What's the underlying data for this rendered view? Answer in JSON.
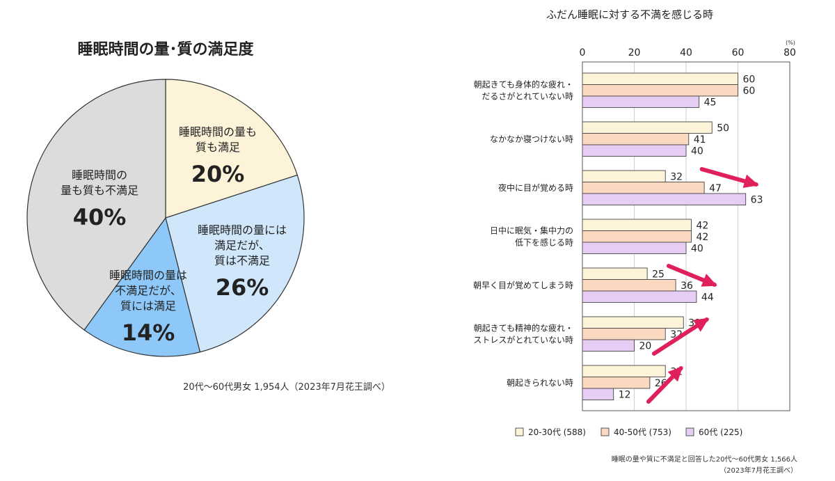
{
  "chart_data": [
    {
      "type": "pie",
      "title": "睡眠時間の量･質の満足度",
      "slices": [
        {
          "label_lines": [
            "睡眠時間の量も",
            "質も満足"
          ],
          "value": 20,
          "value_label": "20%",
          "color": "#fdf3d8"
        },
        {
          "label_lines": [
            "睡眠時間の量には",
            "満足だが、",
            "質は不満足"
          ],
          "value": 26,
          "value_label": "26%",
          "color": "#cfe6fb"
        },
        {
          "label_lines": [
            "睡眠時間の量は",
            "不満足だが、",
            "質には満足"
          ],
          "value": 14,
          "value_label": "14%",
          "color": "#8ec8f8"
        },
        {
          "label_lines": [
            "睡眠時間の",
            "量も質も不満足"
          ],
          "value": 40,
          "value_label": "40%",
          "color": "#dcdcdc"
        }
      ],
      "note": "20代～60代男女 1,954人（2023年7月花王調べ）"
    },
    {
      "type": "bar",
      "orientation": "horizontal",
      "title": "ふだん睡眠に対する不満を感じる時",
      "unit": "(%)",
      "xlim": [
        0,
        80
      ],
      "ticks": [
        0,
        20,
        40,
        60,
        80
      ],
      "grid": true,
      "legend_position": "bottom",
      "categories": [
        [
          "朝起きても身体的な疲れ・",
          "だるさがとれていない時"
        ],
        [
          "なかなか寝つけない時"
        ],
        [
          "夜中に目が覚める時"
        ],
        [
          "日中に眠気・集中力の",
          "低下を感じる時"
        ],
        [
          "朝早く目が覚めてしまう時"
        ],
        [
          "朝起きても精神的な疲れ・",
          "ストレスがとれていない時"
        ],
        [
          "朝起きられない時"
        ]
      ],
      "series": [
        {
          "name": "20-30代 (588)",
          "color": "#fdf3d8",
          "values": [
            60,
            50,
            32,
            42,
            25,
            39,
            32
          ]
        },
        {
          "name": "40-50代 (753)",
          "color": "#fad9c0",
          "values": [
            60,
            41,
            47,
            42,
            36,
            32,
            26
          ]
        },
        {
          "name": "60代 (225)",
          "color": "#e6cdf4",
          "values": [
            45,
            40,
            63,
            40,
            44,
            20,
            12
          ]
        }
      ],
      "trend_arrows": [
        {
          "category_index": 2,
          "direction": "up"
        },
        {
          "category_index": 4,
          "direction": "up"
        },
        {
          "category_index": 5,
          "direction": "down"
        },
        {
          "category_index": 6,
          "direction": "down"
        }
      ],
      "arrow_color": "#e0205a",
      "note_lines": [
        "睡眠の量や質に不満足と回答した20代～60代男女 1,566人",
        "（2023年7月花王調べ）"
      ]
    }
  ]
}
